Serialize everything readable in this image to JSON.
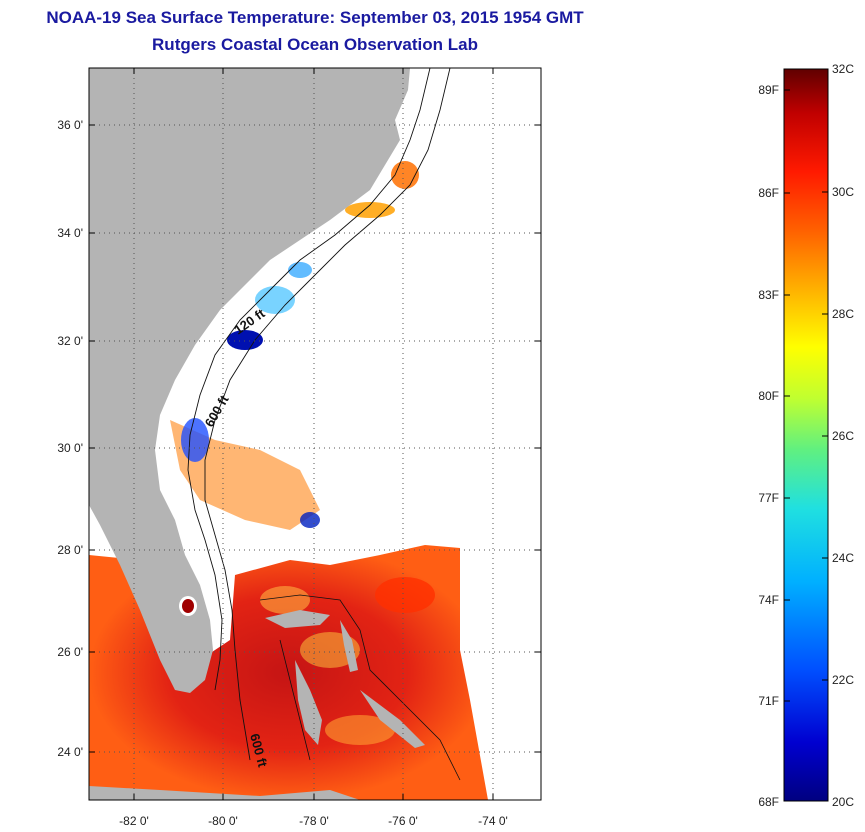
{
  "header": {
    "title": "NOAA-19 Sea Surface Temperature:  September 03, 2015 1954 GMT",
    "subtitle": "Rutgers Coastal Ocean Observation Lab"
  },
  "map": {
    "lat_ticks": [
      "24 0'",
      "26 0'",
      "28 0'",
      "30 0'",
      "32 0'",
      "34 0'",
      "36 0'"
    ],
    "lon_ticks": [
      "-82 0'",
      "-80 0'",
      "-78 0'",
      "-76 0'",
      "-74 0'"
    ],
    "depth_labels": [
      "120 ft",
      "600 ft",
      "600 ft"
    ],
    "colors": {
      "land": "#b4b4b4",
      "frame": "#000000",
      "grid": "#555555"
    }
  },
  "colorbar": {
    "fahrenheit": [
      "89F",
      "86F",
      "83F",
      "80F",
      "77F",
      "74F",
      "71F",
      "68F"
    ],
    "celsius": [
      "32C",
      "30C",
      "28C",
      "26C",
      "24C",
      "22C",
      "20C"
    ],
    "colors": [
      "#000080",
      "#0000d0",
      "#0050ff",
      "#00b0ff",
      "#20e0e0",
      "#60f080",
      "#c0ff30",
      "#ffff00",
      "#ffb000",
      "#ff6000",
      "#ff1a00",
      "#c00000",
      "#600000"
    ]
  }
}
